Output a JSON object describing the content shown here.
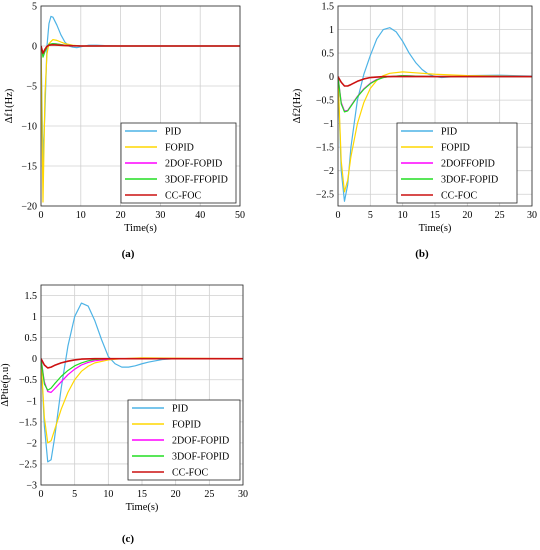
{
  "chart_data": [
    {
      "type": "line",
      "panel_label": "(a)",
      "xlabel": "Time(s)",
      "ylabel": "Δf1(Hz)",
      "xlim": [
        0,
        50
      ],
      "ylim": [
        -20,
        5
      ],
      "xticks": [
        0,
        10,
        20,
        30,
        40,
        50
      ],
      "yticks": [
        5,
        0,
        -5,
        -10,
        -15,
        -20
      ],
      "grid": true,
      "legend_position": "lower-right",
      "series": [
        {
          "name": "PID",
          "color": "#4db3e6",
          "x": [
            0,
            0.5,
            1,
            1.5,
            2,
            2.5,
            3,
            4,
            5,
            6,
            7,
            8,
            9,
            10,
            12,
            14,
            16,
            20,
            30,
            40,
            50
          ],
          "y": [
            0,
            -14.5,
            -8,
            0,
            2.8,
            3.7,
            3.6,
            2.6,
            1.4,
            0.5,
            0,
            -0.15,
            -0.2,
            -0.1,
            0.1,
            0.1,
            0.05,
            0,
            0,
            0,
            0
          ]
        },
        {
          "name": "FOPID",
          "color": "#ffd700",
          "x": [
            0,
            0.5,
            1,
            1.5,
            2,
            3,
            4,
            5,
            6,
            8,
            10,
            15,
            20,
            30,
            50
          ],
          "y": [
            0,
            -19.5,
            -6,
            -1,
            0.3,
            0.8,
            0.7,
            0.5,
            0.3,
            0.1,
            0,
            0,
            0,
            0,
            0
          ]
        },
        {
          "name": "2DOF-FOPID",
          "color": "#ff00ff",
          "x": [
            0,
            0.5,
            1,
            1.5,
            2,
            3,
            4,
            6,
            8,
            10,
            15,
            20,
            50
          ],
          "y": [
            0,
            -1.2,
            -0.6,
            -0.1,
            0.15,
            0.3,
            0.25,
            0.1,
            0.05,
            0,
            0,
            0,
            0
          ]
        },
        {
          "name": "3DOF-FFOPID",
          "color": "#22dd22",
          "x": [
            0,
            0.5,
            1,
            1.5,
            2,
            3,
            4,
            6,
            8,
            10,
            15,
            20,
            50
          ],
          "y": [
            0,
            -1.4,
            -0.7,
            -0.1,
            0.2,
            0.3,
            0.25,
            0.1,
            0.05,
            0,
            0,
            0,
            0
          ]
        },
        {
          "name": "CC-FOC",
          "color": "#cc1111",
          "x": [
            0,
            0.5,
            1,
            1.5,
            2,
            3,
            4,
            6,
            8,
            10,
            15,
            20,
            50
          ],
          "y": [
            0,
            -0.9,
            -0.4,
            -0.05,
            0.1,
            0.15,
            0.12,
            0.05,
            0.02,
            0,
            0,
            0,
            0
          ]
        }
      ]
    },
    {
      "type": "line",
      "panel_label": "(b)",
      "xlabel": "Time(s)",
      "ylabel": "Δf2(Hz)",
      "xlim": [
        0,
        30
      ],
      "ylim": [
        -2.75,
        1.5
      ],
      "xticks": [
        0,
        5,
        10,
        15,
        20,
        25,
        30
      ],
      "yticks": [
        1.5,
        1,
        0.5,
        0,
        -0.5,
        -1,
        -1.5,
        -2,
        -2.5
      ],
      "grid": true,
      "legend_position": "lower-right",
      "series": [
        {
          "name": "PID",
          "color": "#4db3e6",
          "x": [
            0,
            0.5,
            1,
            1.5,
            2,
            3,
            4,
            5,
            6,
            7,
            8,
            9,
            10,
            11,
            12,
            13,
            14,
            15,
            16,
            18,
            20,
            25,
            30
          ],
          "y": [
            0,
            -2.0,
            -2.65,
            -2.3,
            -1.5,
            -0.5,
            0.05,
            0.45,
            0.8,
            1.0,
            1.04,
            0.95,
            0.75,
            0.5,
            0.3,
            0.15,
            0.05,
            0,
            -0.02,
            0,
            0.02,
            0.03,
            0.01
          ]
        },
        {
          "name": "FOPID",
          "color": "#ffd700",
          "x": [
            0,
            0.5,
            1,
            1.5,
            2,
            3,
            4,
            5,
            6,
            7,
            8,
            10,
            12,
            15,
            20,
            25,
            30
          ],
          "y": [
            0,
            -1.8,
            -2.45,
            -2.2,
            -1.7,
            -1.0,
            -0.55,
            -0.25,
            -0.08,
            0.02,
            0.07,
            0.1,
            0.08,
            0.05,
            0.02,
            0.01,
            0
          ]
        },
        {
          "name": "2DOFFOPID",
          "color": "#ff00ff",
          "x": [
            0,
            0.5,
            1,
            1.5,
            2,
            3,
            4,
            5,
            6,
            7,
            8,
            10,
            12,
            15,
            20,
            30
          ],
          "y": [
            0,
            -0.55,
            -0.73,
            -0.72,
            -0.62,
            -0.42,
            -0.26,
            -0.14,
            -0.06,
            -0.02,
            0,
            0.02,
            0.01,
            0,
            0,
            0
          ]
        },
        {
          "name": "3DOF-FOPID",
          "color": "#22dd22",
          "x": [
            0,
            0.5,
            1,
            1.5,
            2,
            3,
            4,
            5,
            6,
            7,
            8,
            10,
            12,
            15,
            20,
            30
          ],
          "y": [
            0,
            -0.58,
            -0.75,
            -0.73,
            -0.63,
            -0.43,
            -0.27,
            -0.15,
            -0.07,
            -0.02,
            0,
            0.02,
            0.01,
            0,
            0,
            0
          ]
        },
        {
          "name": "CC-FOC",
          "color": "#cc1111",
          "x": [
            0,
            0.5,
            1,
            1.5,
            2,
            3,
            4,
            5,
            6,
            7,
            8,
            10,
            15,
            30
          ],
          "y": [
            0,
            -0.12,
            -0.2,
            -0.2,
            -0.17,
            -0.1,
            -0.05,
            -0.02,
            -0.01,
            0,
            0,
            0,
            0,
            0
          ]
        }
      ]
    },
    {
      "type": "line",
      "panel_label": "(c)",
      "xlabel": "Time(s)",
      "ylabel": "ΔPtie(p.u)",
      "xlim": [
        0,
        30
      ],
      "ylim": [
        -3,
        1.75
      ],
      "xticks": [
        0,
        5,
        10,
        15,
        20,
        25,
        30
      ],
      "yticks": [
        1.5,
        1,
        0.5,
        0,
        -0.5,
        -1,
        -1.5,
        -2,
        -2.5,
        -3
      ],
      "grid": true,
      "legend_position": "lower-right",
      "series": [
        {
          "name": "PID",
          "color": "#4db3e6",
          "x": [
            0,
            0.5,
            1,
            1.5,
            2,
            2.5,
            3,
            4,
            5,
            6,
            7,
            8,
            9,
            10,
            11,
            12,
            13,
            14,
            15,
            16,
            18,
            20,
            25,
            30
          ],
          "y": [
            0,
            -1.6,
            -2.45,
            -2.4,
            -1.9,
            -1.3,
            -0.7,
            0.3,
            1.0,
            1.32,
            1.25,
            0.9,
            0.45,
            0.05,
            -0.12,
            -0.2,
            -0.2,
            -0.17,
            -0.12,
            -0.08,
            -0.02,
            0,
            0,
            0
          ]
        },
        {
          "name": "FOPID",
          "color": "#ffd700",
          "x": [
            0,
            0.5,
            1,
            1.5,
            2,
            3,
            4,
            5,
            6,
            7,
            8,
            10,
            12,
            15,
            20,
            30
          ],
          "y": [
            0,
            -1.4,
            -2.0,
            -1.95,
            -1.7,
            -1.2,
            -0.8,
            -0.5,
            -0.3,
            -0.18,
            -0.1,
            -0.03,
            0,
            0.02,
            0.01,
            0
          ]
        },
        {
          "name": "2DOF-FOPID",
          "color": "#ff00ff",
          "x": [
            0,
            0.5,
            1,
            1.5,
            2,
            3,
            4,
            5,
            6,
            7,
            8,
            10,
            12,
            15,
            20,
            30
          ],
          "y": [
            0,
            -0.55,
            -0.78,
            -0.8,
            -0.72,
            -0.55,
            -0.38,
            -0.25,
            -0.15,
            -0.09,
            -0.05,
            -0.01,
            0,
            0,
            0,
            0
          ]
        },
        {
          "name": "3DOF-FOPID",
          "color": "#22dd22",
          "x": [
            0,
            0.5,
            1,
            1.5,
            2,
            3,
            4,
            5,
            6,
            7,
            8,
            10,
            12,
            15,
            20,
            30
          ],
          "y": [
            0,
            -0.6,
            -0.75,
            -0.7,
            -0.6,
            -0.42,
            -0.28,
            -0.17,
            -0.1,
            -0.05,
            -0.02,
            0,
            0,
            0,
            0,
            0
          ]
        },
        {
          "name": "CC-FOC",
          "color": "#cc1111",
          "x": [
            0,
            0.5,
            1,
            1.5,
            2,
            3,
            4,
            5,
            6,
            8,
            10,
            15,
            30
          ],
          "y": [
            0,
            -0.15,
            -0.22,
            -0.2,
            -0.16,
            -0.1,
            -0.06,
            -0.03,
            -0.01,
            0,
            0,
            0,
            0
          ]
        }
      ]
    }
  ]
}
